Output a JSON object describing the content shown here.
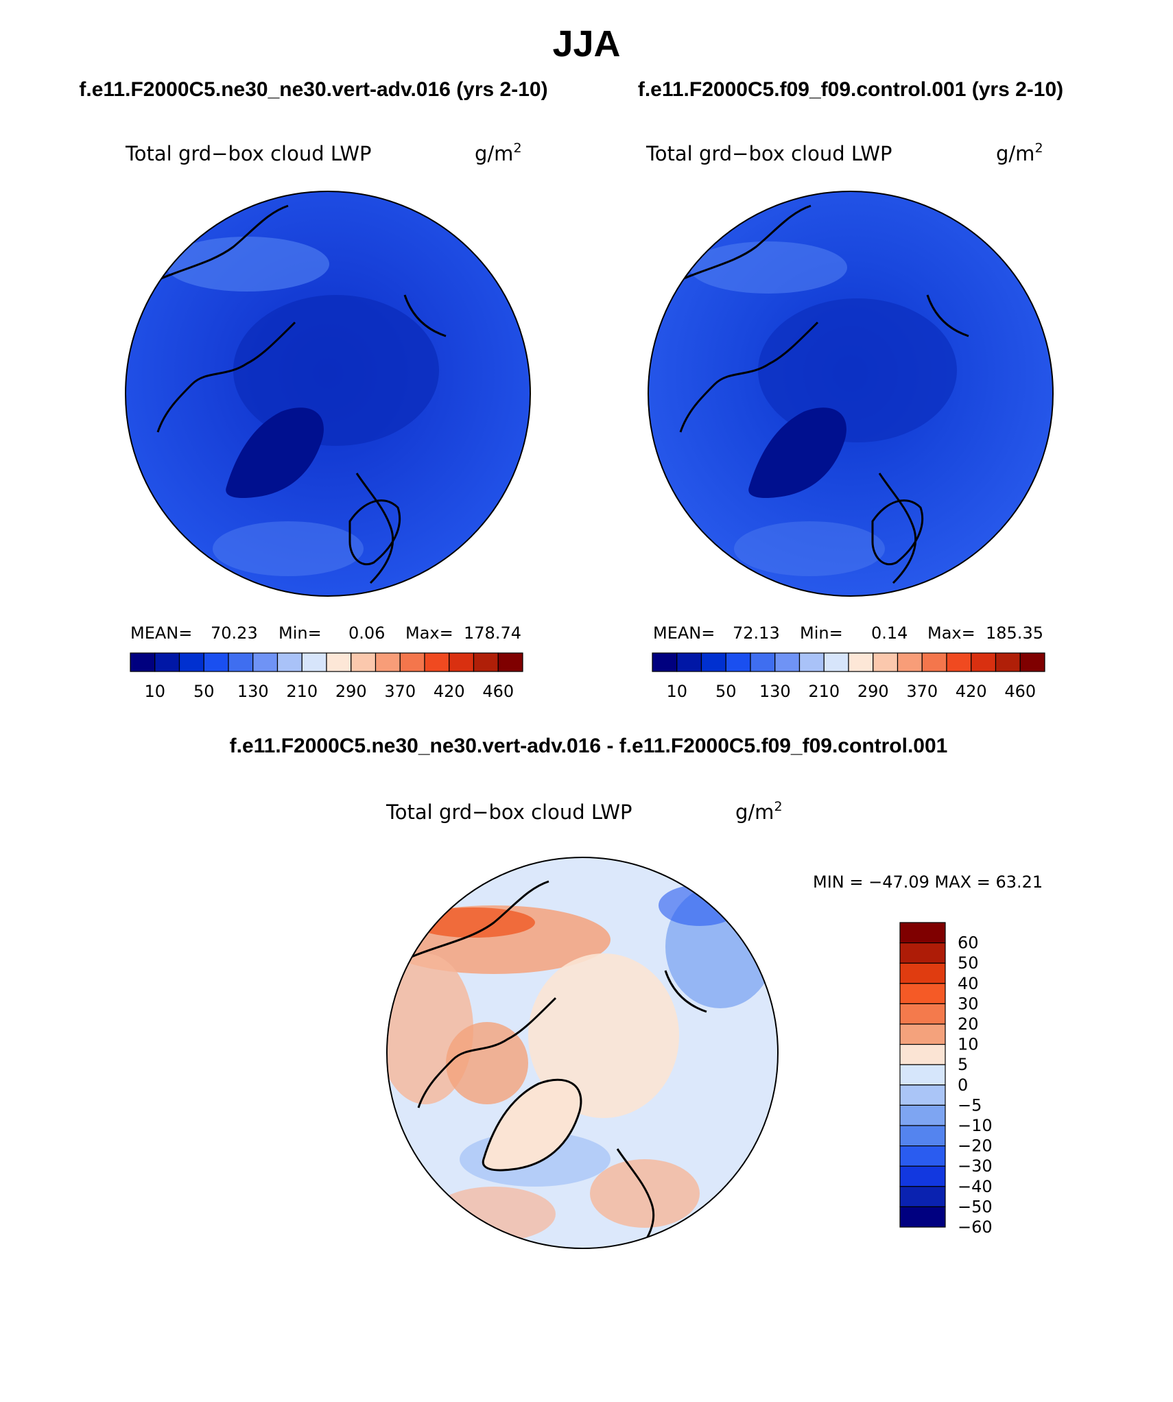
{
  "page": {
    "season": "JJA",
    "left_case": "f.e11.F2000C5.ne30_ne30.vert-adv.016 (yrs 2-10)",
    "right_case": "f.e11.F2000C5.f09_f09.control.001 (yrs 2-10)",
    "diff_title": "f.e11.F2000C5.ne30_ne30.vert-adv.016 - f.e11.F2000C5.f09_f09.control.001"
  },
  "panels": [
    {
      "id": "left",
      "variable": "Total grd−box cloud LWP",
      "units": "g/m",
      "units_sup": "2",
      "mean_label": "MEAN=",
      "mean": "70.23",
      "min_label": "Min=",
      "min": "0.06",
      "max_label": "Max=",
      "max": "178.74"
    },
    {
      "id": "right",
      "variable": "Total grd−box cloud LWP",
      "units": "g/m",
      "units_sup": "2",
      "mean_label": "MEAN=",
      "mean": "72.13",
      "min_label": "Min=",
      "min": "0.14",
      "max_label": "Max=",
      "max": "185.35"
    }
  ],
  "diff_panel": {
    "variable": "Total grd−box cloud LWP",
    "units": "g/m",
    "units_sup": "2",
    "minmax": "MIN = −47.09 MAX =  63.21"
  },
  "colorbar_main": {
    "colors": [
      "#00007f",
      "#0017a6",
      "#0030d0",
      "#1a4ff0",
      "#3f6ef0",
      "#6f93f5",
      "#a9c2f8",
      "#d7e5fb",
      "#fde7d7",
      "#fbc8ad",
      "#f89d78",
      "#f4764c",
      "#f04a20",
      "#d93010",
      "#b01f08",
      "#7f0000"
    ],
    "labels": [
      "10",
      "50",
      "130",
      "210",
      "290",
      "370",
      "420",
      "460"
    ]
  },
  "colorbar_diff": {
    "colors": [
      "#7f0000",
      "#ae1c07",
      "#e03c10",
      "#f55a26",
      "#f47a4c",
      "#f4a27c",
      "#fbe4d4",
      "#d6e6fb",
      "#aac5f7",
      "#7ea5f2",
      "#5484ef",
      "#2a5cf0",
      "#1238e0",
      "#0a22b0",
      "#000080"
    ],
    "labels": [
      "60",
      "50",
      "40",
      "30",
      "20",
      "10",
      "5",
      "0",
      "−5",
      "−10",
      "−20",
      "−30",
      "−40",
      "−50",
      "−60"
    ]
  },
  "legend": {
    "colors": {
      "land_outline": "#000000",
      "base_blue": "#1f52e8",
      "arctic_blue": "#0a2fc8",
      "greenland_blue": "#00108f",
      "diff_pos": "#f6b79a",
      "diff_neg": "#b9cff8"
    }
  }
}
